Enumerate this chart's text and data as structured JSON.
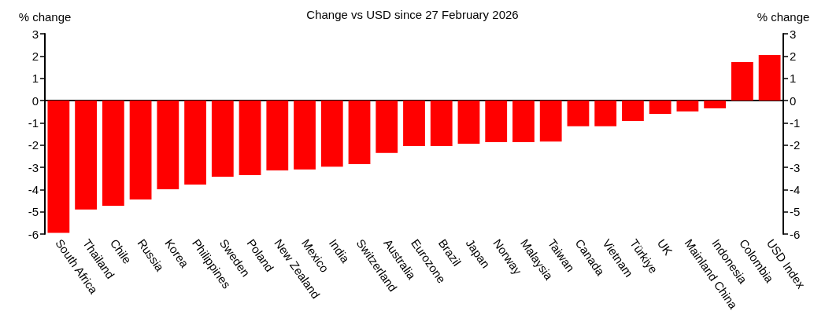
{
  "chart_data": {
    "type": "bar",
    "title": "Change vs USD since 27 February 2026",
    "ylabel": "% change",
    "y2label": "% change",
    "categories": [
      "South Africa",
      "Thailand",
      "Chile",
      "Russia",
      "Korea",
      "Philippines",
      "Sweden",
      "Poland",
      "New Zealand",
      "Mexico",
      "India",
      "Switzerland",
      "Australia",
      "Eurozone",
      "Brazil",
      "Japan",
      "Norway",
      "Malaysia",
      "Taiwan",
      "Canada",
      "Vietnam",
      "Türkiye",
      "UK",
      "Mainland China",
      "Indonesia",
      "Colombia",
      "USD Index"
    ],
    "values": [
      -5.95,
      -4.9,
      -4.73,
      -4.45,
      -3.99,
      -3.78,
      -3.42,
      -3.35,
      -3.14,
      -3.1,
      -2.97,
      -2.86,
      -2.36,
      -2.05,
      -2.05,
      -1.94,
      -1.87,
      -1.87,
      -1.84,
      -1.16,
      -1.16,
      -0.92,
      -0.6,
      -0.49,
      -0.35,
      1.73,
      2.05
    ],
    "color": "#ff0000",
    "ylim": [
      -6,
      3
    ],
    "yticks": [
      -6,
      -5,
      -4,
      -3,
      -2,
      -1,
      0,
      1,
      2,
      3
    ],
    "y2lim": [
      -6,
      3
    ],
    "y2ticks": [
      -6,
      -5,
      -4,
      -3,
      -2,
      -1,
      0,
      1,
      2,
      3
    ]
  }
}
